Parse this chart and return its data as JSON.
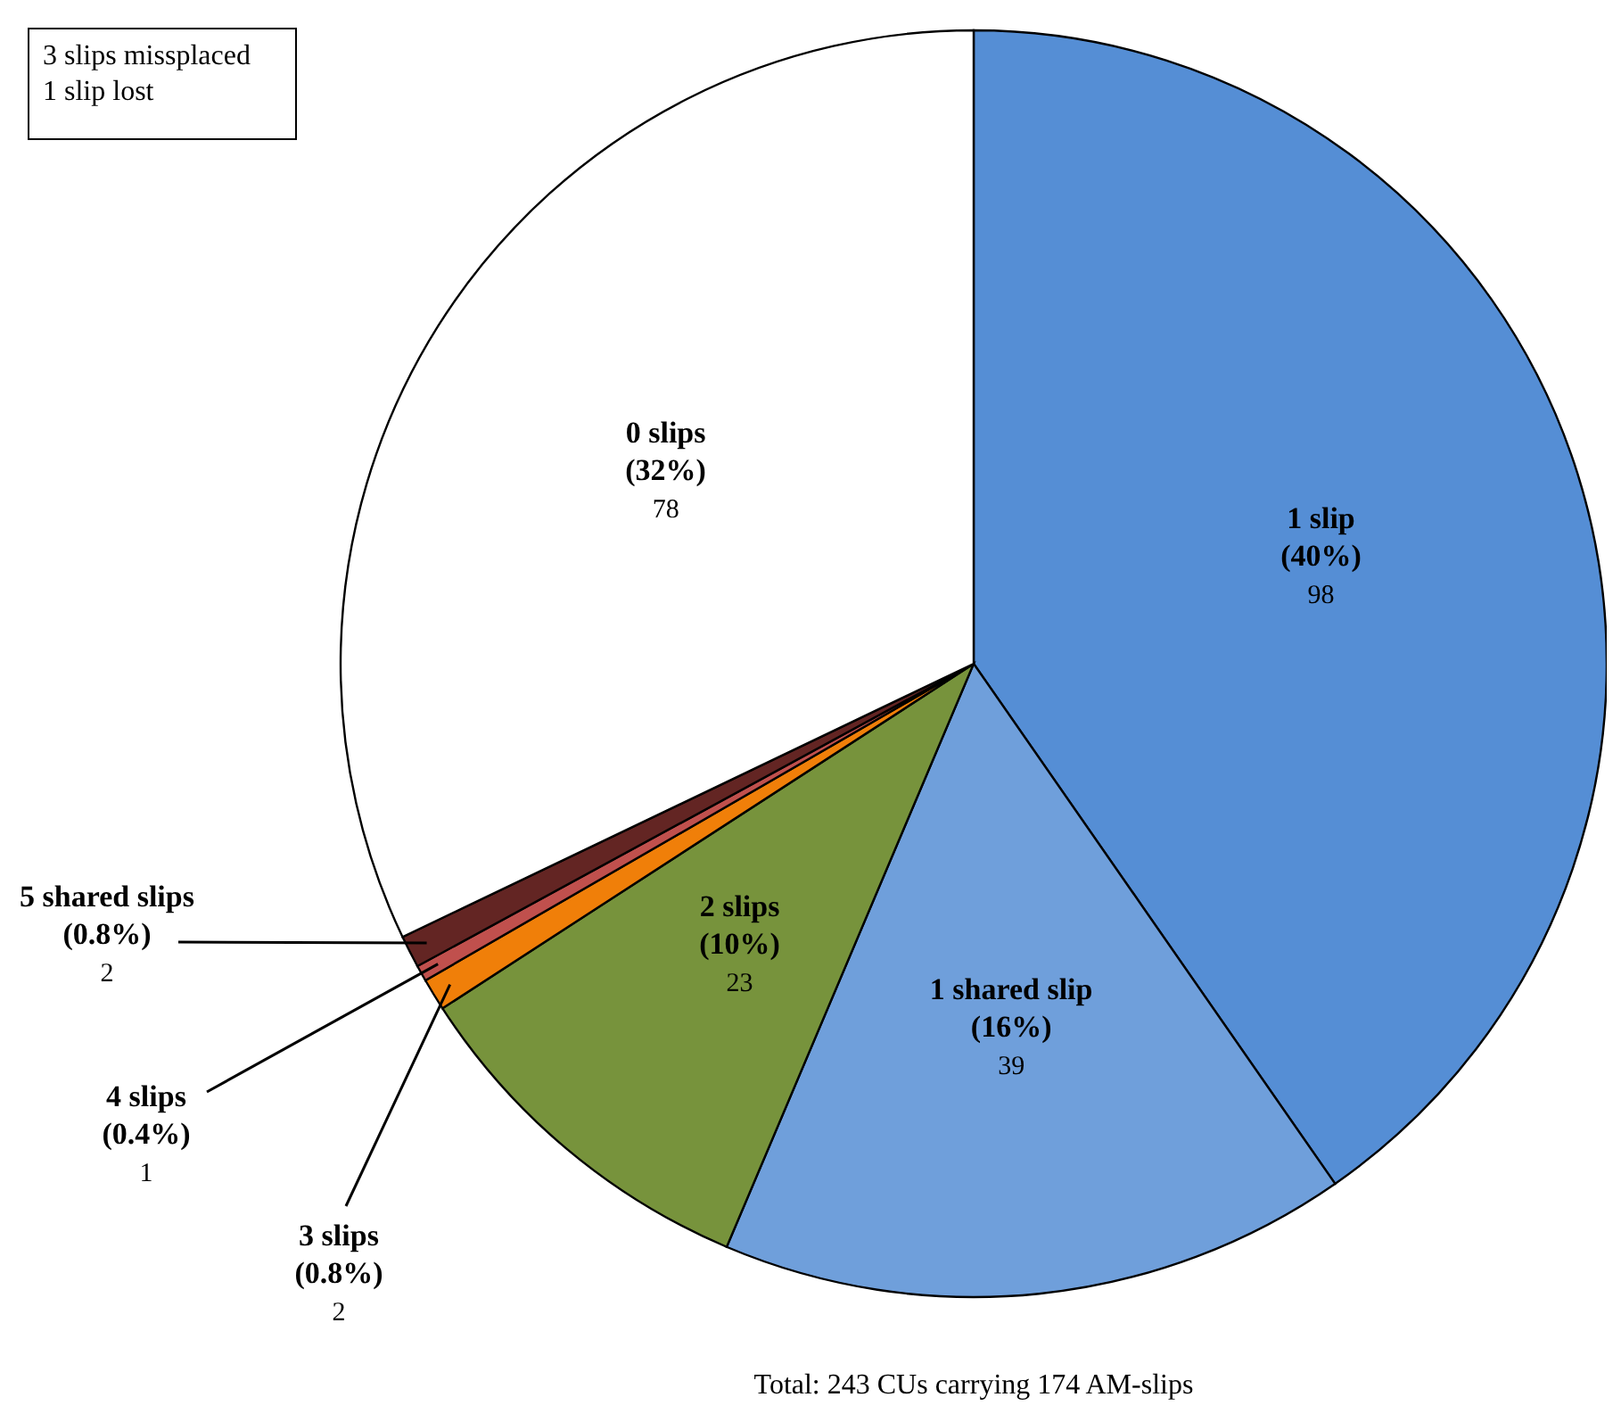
{
  "chart_data": {
    "type": "pie",
    "categories": [
      "1 slip",
      "1 shared slip",
      "2 slips",
      "3 slips",
      "4 slips",
      "5 shared slips",
      "0 slips"
    ],
    "values": [
      98,
      39,
      23,
      2,
      1,
      2,
      78
    ],
    "value_labels": [
      "(40%) 98",
      "(16%) 39",
      "(10%) 23",
      "(0.8%) 2",
      "(0.4%) 1",
      "(0.8%) 2",
      "(32%) 78"
    ],
    "colors": [
      "#558ed5",
      "#6f9fdb",
      "#77933c",
      "#f07f09",
      "#c0504d",
      "#632523",
      "#ffffff"
    ],
    "annotations": [
      "3 slips missplaced",
      "1 slip lost",
      "Total: 243 CUs carrying 174 AM-slips"
    ]
  }
}
